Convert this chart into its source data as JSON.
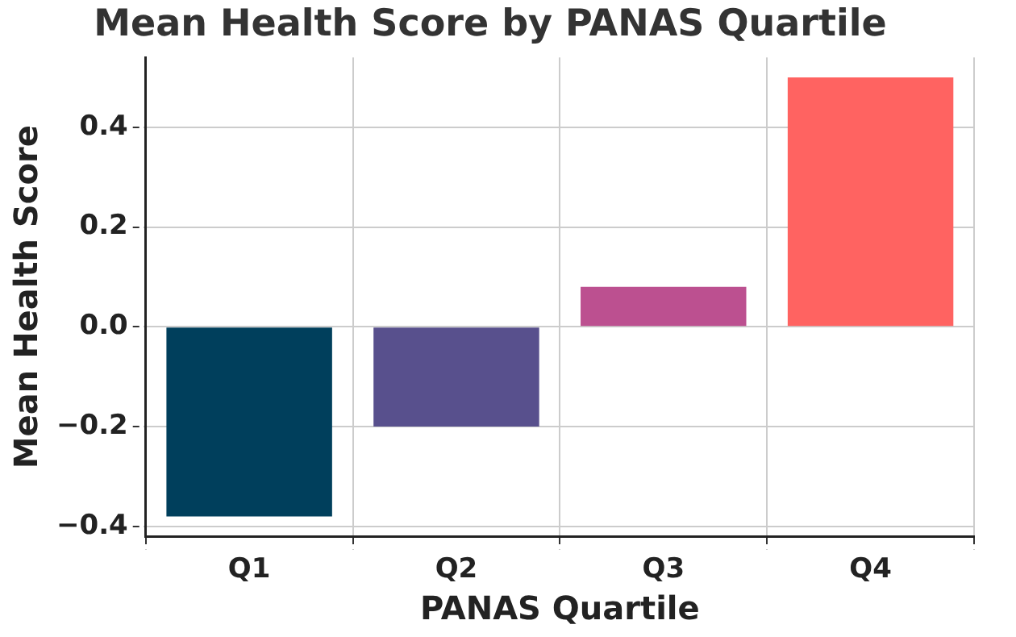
{
  "chart_data": {
    "type": "bar",
    "title": "Mean Health Score by PANAS Quartile",
    "xlabel": "PANAS Quartile",
    "ylabel": "Mean Health Score",
    "categories": [
      "Q1",
      "Q2",
      "Q3",
      "Q4"
    ],
    "values": [
      -0.38,
      -0.2,
      0.08,
      0.5
    ],
    "colors": [
      "#003f5c",
      "#58508d",
      "#bc5090",
      "#ff6361"
    ],
    "ylim": [
      -0.42,
      0.54
    ],
    "yticks": [
      {
        "value": -0.4,
        "label": "−0.4"
      },
      {
        "value": -0.2,
        "label": "−0.2"
      },
      {
        "value": 0,
        "label": "0.0"
      },
      {
        "value": 0.2,
        "label": "0.2"
      },
      {
        "value": 0.4,
        "label": "0.4"
      }
    ],
    "grid": true,
    "legend": false
  }
}
